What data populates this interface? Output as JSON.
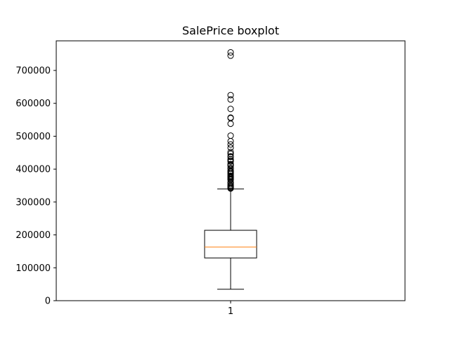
{
  "chart_data": {
    "type": "box",
    "title": "SalePrice boxplot",
    "xlabel": "",
    "ylabel": "",
    "categories": [
      "1"
    ],
    "ylim": [
      0,
      790000
    ],
    "yticks": [
      0,
      100000,
      200000,
      300000,
      400000,
      500000,
      600000,
      700000
    ],
    "ytick_labels": [
      "0",
      "100000",
      "200000",
      "300000",
      "400000",
      "500000",
      "600000",
      "700000"
    ],
    "grid": false,
    "legend": "none",
    "box": {
      "whisker_low": 34900,
      "q1": 129975,
      "median": 163000,
      "q3": 214000,
      "whisker_high": 340000
    },
    "outliers": [
      341000,
      342643,
      345000,
      348000,
      350000,
      354000,
      359100,
      360000,
      367294,
      369900,
      372402,
      375000,
      377426,
      380000,
      385000,
      386250,
      390000,
      392500,
      395000,
      402000,
      403000,
      410000,
      412500,
      415298,
      423000,
      426000,
      430000,
      437154,
      438780,
      446261,
      451950,
      465000,
      475000,
      485000,
      501837,
      538000,
      555000,
      556581,
      582933,
      611657,
      625000,
      745000,
      755000
    ],
    "colors": {
      "box": "#000000",
      "median": "#ff7f0e",
      "outlier": "#000000"
    }
  }
}
